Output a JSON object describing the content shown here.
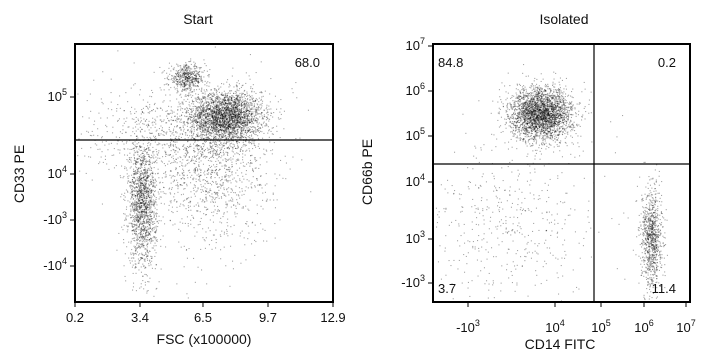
{
  "chart_data": [
    {
      "type": "scatter",
      "title": "Start",
      "xlabel": "FSC (x100000)",
      "ylabel": "CD33 PE",
      "xlim": [
        0.2,
        12.9
      ],
      "x_ticks": [
        "0.2",
        "3.4",
        "6.5",
        "9.7",
        "12.9"
      ],
      "y_ticks": [
        {
          "base": "10",
          "exp": "5"
        },
        {
          "base": "10",
          "exp": "4"
        },
        {
          "base": "-10",
          "exp": "3"
        },
        {
          "base": "-10",
          "exp": "4"
        }
      ],
      "gate_y": "CD33 PE positive threshold",
      "annotations": [
        "68.0"
      ],
      "populations": [
        {
          "x": 7.6,
          "y_level": 0.72,
          "n": 2600,
          "sx": 0.9,
          "sy": 0.05
        },
        {
          "x": 5.7,
          "y_level": 0.87,
          "n": 500,
          "sx": 0.45,
          "sy": 0.025
        },
        {
          "x": 3.5,
          "y_level": 0.38,
          "n": 1500,
          "sx": 0.35,
          "sy": 0.12
        },
        {
          "x": 6.8,
          "y_level": 0.52,
          "n": 1100,
          "sx": 1.5,
          "sy": 0.16
        },
        {
          "x": 5.2,
          "y_level": 0.64,
          "n": 700,
          "sx": 2.5,
          "sy": 0.1
        }
      ]
    },
    {
      "type": "scatter",
      "title": "Isolated",
      "xlabel": "CD14 FITC",
      "ylabel": "CD66b PE",
      "x_ticks": [
        {
          "base": "-10",
          "exp": "3"
        },
        {
          "base": "10",
          "exp": "4"
        },
        {
          "base": "10",
          "exp": "5"
        },
        {
          "base": "10",
          "exp": "6"
        },
        {
          "base": "10",
          "exp": "7"
        }
      ],
      "y_ticks": [
        {
          "base": "10",
          "exp": "7"
        },
        {
          "base": "10",
          "exp": "6"
        },
        {
          "base": "10",
          "exp": "5"
        },
        {
          "base": "10",
          "exp": "4"
        },
        {
          "base": "10",
          "exp": "3"
        },
        {
          "base": "-10",
          "exp": "3"
        }
      ],
      "quadrants": {
        "upper_left": "84.8",
        "upper_right": "0.2",
        "lower_left": "3.7",
        "lower_right": "11.4"
      },
      "populations": [
        {
          "x_level": 0.42,
          "y_level": 0.73,
          "n": 2800,
          "sx": 0.06,
          "sy": 0.05
        },
        {
          "x_level": 0.85,
          "y_level": 0.25,
          "n": 900,
          "sx": 0.02,
          "sy": 0.1
        },
        {
          "x_level": 0.3,
          "y_level": 0.3,
          "n": 500,
          "sx": 0.18,
          "sy": 0.18
        }
      ]
    }
  ]
}
